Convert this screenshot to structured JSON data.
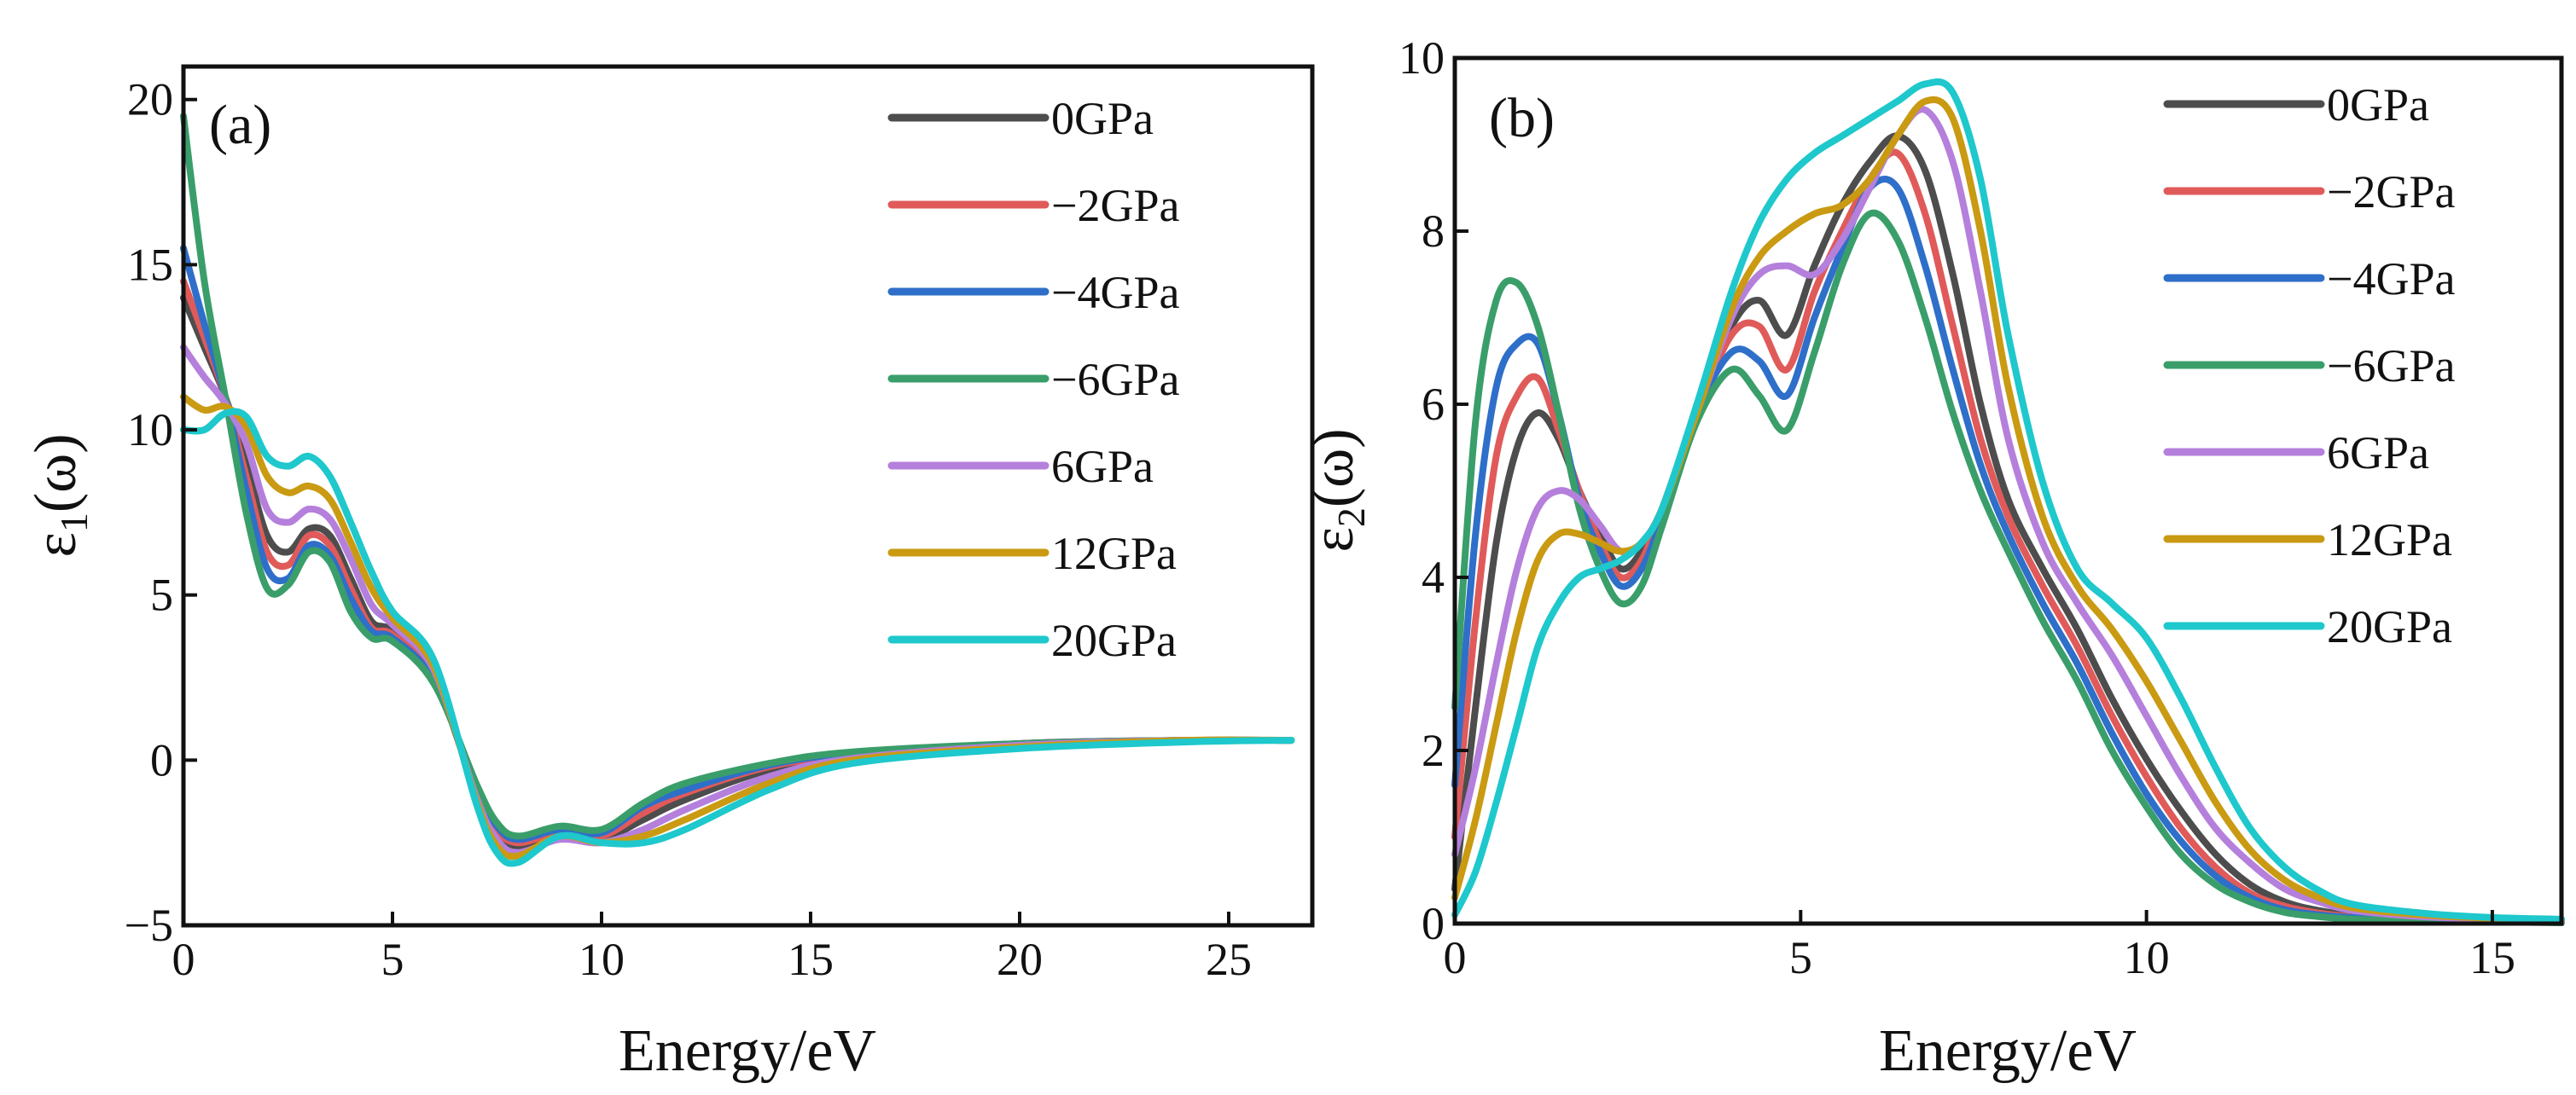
{
  "chart_data": [
    {
      "type": "line",
      "panel_label": "(a)",
      "xlabel": "Energy/eV",
      "ylabel_main": "ε",
      "ylabel_sub": "1",
      "ylabel_tail": "(ω)",
      "xlim": [
        0,
        27
      ],
      "ylim": [
        -5,
        21
      ],
      "xticks": [
        0,
        5,
        10,
        15,
        20,
        25
      ],
      "yticks": [
        -5,
        0,
        5,
        10,
        15,
        20
      ],
      "xtick_labels": [
        "0",
        "5",
        "10",
        "15",
        "20",
        "25"
      ],
      "ytick_labels": [
        "−5",
        "0",
        "5",
        "10",
        "15",
        "20"
      ],
      "legend_position": "top-right",
      "series": [
        {
          "name": "0GPa",
          "color": "#4d4d4d",
          "x": [
            0,
            0.5,
            1,
            1.5,
            2,
            2.5,
            3,
            3.5,
            4,
            4.5,
            5,
            6,
            7,
            7.5,
            8,
            9,
            10,
            11,
            12,
            14,
            16,
            20,
            24,
            26.5
          ],
          "y": [
            14,
            12.5,
            11,
            9,
            6.8,
            6.3,
            7,
            6.8,
            5.5,
            4.2,
            3.9,
            2.5,
            -1,
            -2.2,
            -2.6,
            -2.3,
            -2.4,
            -1.8,
            -1.2,
            -0.3,
            0.1,
            0.5,
            0.6,
            0.6
          ]
        },
        {
          "name": "−2GPa",
          "color": "#e05a5a",
          "x": [
            0,
            0.5,
            1,
            1.5,
            2,
            2.5,
            3,
            3.5,
            4,
            4.5,
            5,
            6,
            7,
            7.5,
            8,
            9,
            10,
            11,
            12,
            14,
            16,
            20,
            24,
            26.5
          ],
          "y": [
            14.5,
            12.8,
            11,
            8.6,
            6.3,
            5.9,
            6.8,
            6.5,
            5.2,
            4,
            3.8,
            2.5,
            -0.9,
            -2.1,
            -2.5,
            -2.2,
            -2.3,
            -1.6,
            -1,
            -0.2,
            0.15,
            0.5,
            0.6,
            0.6
          ]
        },
        {
          "name": "−4GPa",
          "color": "#2e6fc9",
          "x": [
            0,
            0.5,
            1,
            1.5,
            2,
            2.5,
            3,
            3.5,
            4,
            4.5,
            5,
            6,
            7,
            7.5,
            8,
            9,
            10,
            11,
            12,
            14,
            16,
            20,
            24,
            26.5
          ],
          "y": [
            15.5,
            13.2,
            11,
            8.2,
            5.8,
            5.5,
            6.5,
            6.2,
            4.9,
            3.9,
            3.7,
            2.4,
            -0.8,
            -2,
            -2.4,
            -2.1,
            -2.2,
            -1.4,
            -0.9,
            -0.15,
            0.2,
            0.5,
            0.6,
            0.6
          ]
        },
        {
          "name": "−6GPa",
          "color": "#3a9e6a",
          "x": [
            0,
            0.5,
            1,
            1.5,
            2,
            2.5,
            3,
            3.5,
            4,
            4.5,
            5,
            6,
            7,
            7.5,
            8,
            9,
            10,
            11,
            12,
            14,
            16,
            20,
            24,
            26.5
          ],
          "y": [
            19.5,
            14.5,
            11,
            7.5,
            5.2,
            5.3,
            6.3,
            6,
            4.5,
            3.7,
            3.6,
            2.3,
            -0.7,
            -1.9,
            -2.3,
            -2,
            -2.1,
            -1.3,
            -0.7,
            -0.1,
            0.25,
            0.5,
            0.6,
            0.6
          ]
        },
        {
          "name": "6GPa",
          "color": "#b57fdc",
          "x": [
            0,
            0.5,
            1,
            1.5,
            2,
            2.5,
            3,
            3.5,
            4,
            4.5,
            5,
            6,
            7,
            7.5,
            8,
            9,
            10,
            11,
            12,
            14,
            16,
            20,
            24,
            26.5
          ],
          "y": [
            12.5,
            11.6,
            10.8,
            9.6,
            7.6,
            7.2,
            7.6,
            7.3,
            6.1,
            4.7,
            4.1,
            2.7,
            -1.1,
            -2.4,
            -2.8,
            -2.4,
            -2.5,
            -2.1,
            -1.5,
            -0.5,
            0.05,
            0.45,
            0.6,
            0.6
          ]
        },
        {
          "name": "12GPa",
          "color": "#c99a12",
          "x": [
            0,
            0.5,
            1,
            1.5,
            2,
            2.5,
            3,
            3.5,
            4,
            4.5,
            5,
            6,
            7,
            7.5,
            8,
            9,
            10,
            11,
            12,
            14,
            16,
            20,
            24,
            26.5
          ],
          "y": [
            11,
            10.6,
            10.7,
            10.1,
            8.6,
            8.1,
            8.3,
            7.9,
            6.6,
            5.2,
            4.3,
            2.8,
            -1.2,
            -2.6,
            -2.9,
            -2.3,
            -2.5,
            -2.3,
            -1.8,
            -0.7,
            0,
            0.4,
            0.6,
            0.6
          ]
        },
        {
          "name": "20GPa",
          "color": "#1ec8cc",
          "x": [
            0,
            0.5,
            1,
            1.5,
            2,
            2.5,
            3,
            3.5,
            4,
            4.5,
            5,
            6,
            7,
            7.5,
            8,
            9,
            10,
            11,
            12,
            14,
            16,
            20,
            24,
            26.5
          ],
          "y": [
            10,
            10,
            10.5,
            10.4,
            9.2,
            8.9,
            9.2,
            8.6,
            7.2,
            5.7,
            4.5,
            3,
            -1.3,
            -2.8,
            -3.1,
            -2.3,
            -2.5,
            -2.5,
            -2.1,
            -0.9,
            -0.1,
            0.35,
            0.55,
            0.6
          ]
        }
      ]
    },
    {
      "type": "line",
      "panel_label": "(b)",
      "xlabel": "Energy/eV",
      "ylabel_main": "ε",
      "ylabel_sub": "2",
      "ylabel_tail": "(ω)",
      "xlim": [
        0,
        16
      ],
      "ylim": [
        0,
        10
      ],
      "xticks": [
        0,
        5,
        10,
        15
      ],
      "yticks": [
        0,
        2,
        4,
        6,
        8,
        10
      ],
      "xtick_labels": [
        "0",
        "5",
        "10",
        "15"
      ],
      "ytick_labels": [
        "0",
        "2",
        "4",
        "6",
        "8",
        "10"
      ],
      "legend_position": "top-right",
      "series": [
        {
          "name": "0GPa",
          "color": "#4d4d4d",
          "x": [
            0,
            0.3,
            0.6,
            0.9,
            1.2,
            1.5,
            1.8,
            2.1,
            2.4,
            2.7,
            3,
            3.5,
            4,
            4.4,
            4.8,
            5.2,
            5.6,
            6,
            6.4,
            6.8,
            7.2,
            7.6,
            8,
            8.5,
            9,
            9.5,
            10,
            10.5,
            11,
            11.5,
            12,
            12.5,
            13,
            14,
            15,
            16
          ],
          "y": [
            0.4,
            2.5,
            4.4,
            5.5,
            5.9,
            5.6,
            5,
            4.5,
            4.1,
            4.3,
            4.8,
            5.9,
            6.9,
            7.2,
            6.8,
            7.6,
            8.3,
            8.8,
            9.1,
            8.7,
            7.5,
            6,
            4.9,
            4.1,
            3.4,
            2.6,
            1.9,
            1.3,
            0.8,
            0.45,
            0.25,
            0.15,
            0.1,
            0.06,
            0.04,
            0.03
          ]
        },
        {
          "name": "−2GPa",
          "color": "#e05a5a",
          "x": [
            0,
            0.3,
            0.6,
            0.9,
            1.2,
            1.5,
            1.8,
            2.1,
            2.4,
            2.7,
            3,
            3.5,
            4,
            4.4,
            4.8,
            5.2,
            5.6,
            6,
            6.4,
            6.8,
            7.2,
            7.6,
            8,
            8.5,
            9,
            9.5,
            10,
            10.5,
            11,
            11.5,
            12,
            12.5,
            13,
            14,
            15,
            16
          ],
          "y": [
            1,
            3.5,
            5.4,
            6.1,
            6.3,
            5.7,
            5,
            4.4,
            4,
            4.2,
            4.8,
            5.9,
            6.8,
            6.9,
            6.4,
            7.3,
            8,
            8.6,
            8.9,
            8.2,
            6.9,
            5.6,
            4.7,
            3.9,
            3.2,
            2.4,
            1.7,
            1.1,
            0.65,
            0.35,
            0.2,
            0.12,
            0.08,
            0.05,
            0.03,
            0.02
          ]
        },
        {
          "name": "−4GPa",
          "color": "#2e6fc9",
          "x": [
            0,
            0.3,
            0.6,
            0.9,
            1.2,
            1.5,
            1.8,
            2.1,
            2.4,
            2.7,
            3,
            3.5,
            4,
            4.4,
            4.8,
            5.2,
            5.6,
            6,
            6.4,
            6.8,
            7.2,
            7.6,
            8,
            8.5,
            9,
            9.5,
            10,
            10.5,
            11,
            11.5,
            12,
            12.5,
            13,
            14,
            15,
            16
          ],
          "y": [
            1.6,
            4.5,
            6.2,
            6.7,
            6.7,
            5.9,
            4.9,
            4.3,
            3.9,
            4.1,
            4.7,
            5.9,
            6.6,
            6.5,
            6.1,
            7,
            7.8,
            8.5,
            8.5,
            7.6,
            6.4,
            5.3,
            4.5,
            3.7,
            3,
            2.2,
            1.5,
            0.95,
            0.55,
            0.3,
            0.16,
            0.1,
            0.07,
            0.04,
            0.03,
            0.02
          ]
        },
        {
          "name": "−6GPa",
          "color": "#3a9e6a",
          "x": [
            0,
            0.3,
            0.6,
            0.9,
            1.2,
            1.5,
            1.8,
            2.1,
            2.4,
            2.7,
            3,
            3.5,
            4,
            4.4,
            4.8,
            5.2,
            5.6,
            6,
            6.4,
            6.8,
            7.2,
            7.6,
            8,
            8.5,
            9,
            9.5,
            10,
            10.5,
            11,
            11.5,
            12,
            12.5,
            13,
            14,
            15,
            16
          ],
          "y": [
            2.5,
            5.8,
            7.2,
            7.4,
            6.9,
            5.9,
            4.8,
            4.1,
            3.7,
            3.9,
            4.6,
            5.8,
            6.4,
            6.1,
            5.7,
            6.6,
            7.6,
            8.2,
            7.9,
            7,
            5.9,
            5,
            4.3,
            3.5,
            2.8,
            2,
            1.35,
            0.8,
            0.45,
            0.25,
            0.13,
            0.08,
            0.05,
            0.03,
            0.02,
            0.01
          ]
        },
        {
          "name": "6GPa",
          "color": "#b57fdc",
          "x": [
            0,
            0.3,
            0.6,
            0.9,
            1.2,
            1.5,
            1.8,
            2.1,
            2.4,
            2.7,
            3,
            3.5,
            4,
            4.4,
            4.8,
            5.2,
            5.6,
            6,
            6.4,
            6.8,
            7.2,
            7.6,
            8,
            8.5,
            9,
            9.5,
            10,
            10.5,
            11,
            11.5,
            12,
            12.5,
            13,
            14,
            15,
            16
          ],
          "y": [
            0.8,
            1.8,
            3,
            4.1,
            4.8,
            5,
            4.9,
            4.6,
            4.3,
            4.4,
            4.8,
            5.9,
            7,
            7.5,
            7.6,
            7.5,
            7.9,
            8.5,
            9.1,
            9.4,
            8.8,
            7.3,
            5.6,
            4.4,
            3.7,
            3.1,
            2.4,
            1.7,
            1.1,
            0.7,
            0.4,
            0.25,
            0.15,
            0.08,
            0.05,
            0.03
          ]
        },
        {
          "name": "12GPa",
          "color": "#c99a12",
          "x": [
            0,
            0.3,
            0.6,
            0.9,
            1.2,
            1.5,
            1.8,
            2.1,
            2.4,
            2.7,
            3,
            3.5,
            4,
            4.4,
            4.8,
            5.2,
            5.6,
            6,
            6.4,
            6.8,
            7.2,
            7.6,
            8,
            8.5,
            9,
            9.5,
            10,
            10.5,
            11,
            11.5,
            12,
            12.5,
            13,
            14,
            15,
            16
          ],
          "y": [
            0.3,
            1.2,
            2.3,
            3.4,
            4.2,
            4.5,
            4.5,
            4.4,
            4.3,
            4.4,
            4.8,
            5.9,
            7.1,
            7.7,
            8,
            8.2,
            8.3,
            8.6,
            9.1,
            9.5,
            9.3,
            8,
            6.2,
            4.7,
            3.9,
            3.4,
            2.8,
            2.1,
            1.4,
            0.85,
            0.5,
            0.3,
            0.18,
            0.1,
            0.06,
            0.04
          ]
        },
        {
          "name": "20GPa",
          "color": "#1ec8cc",
          "x": [
            0,
            0.3,
            0.6,
            0.9,
            1.2,
            1.5,
            1.8,
            2.1,
            2.4,
            2.7,
            3,
            3.5,
            4,
            4.4,
            4.8,
            5.2,
            5.6,
            6,
            6.4,
            6.8,
            7.2,
            7.6,
            8,
            8.5,
            9,
            9.5,
            10,
            10.5,
            11,
            11.5,
            12,
            12.5,
            13,
            14,
            15,
            16
          ],
          "y": [
            0.1,
            0.6,
            1.4,
            2.3,
            3.2,
            3.7,
            4,
            4.1,
            4.2,
            4.4,
            4.8,
            6,
            7.3,
            8.1,
            8.6,
            8.9,
            9.1,
            9.3,
            9.5,
            9.7,
            9.6,
            8.6,
            6.8,
            5.1,
            4.1,
            3.7,
            3.3,
            2.6,
            1.8,
            1.1,
            0.65,
            0.38,
            0.22,
            0.12,
            0.07,
            0.05
          ]
        }
      ]
    }
  ]
}
